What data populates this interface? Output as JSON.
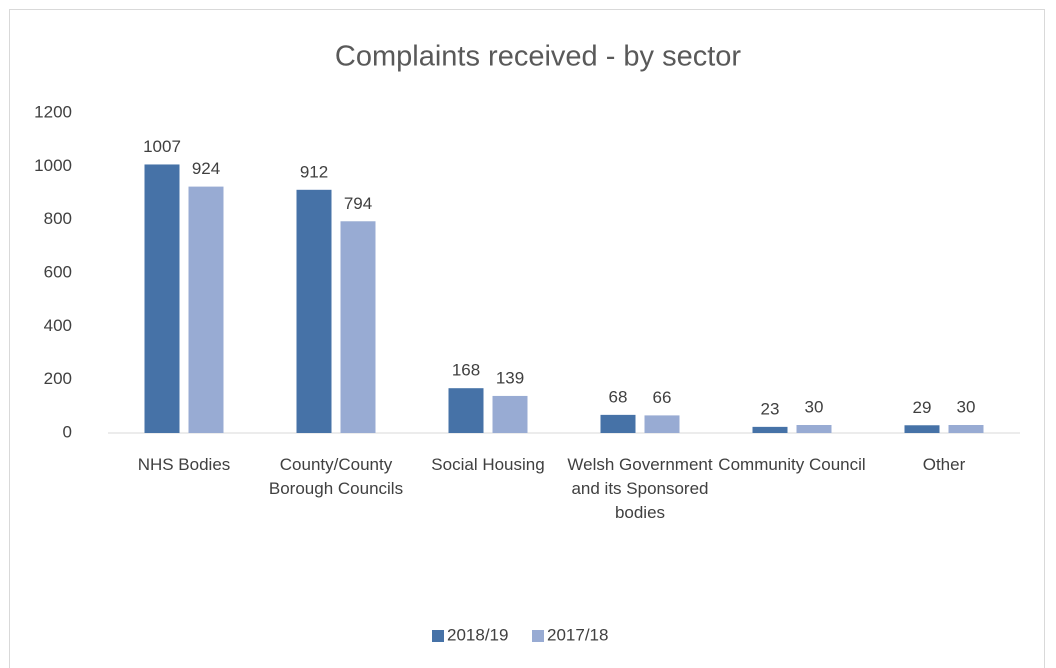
{
  "chart_data": {
    "type": "bar",
    "title": "Complaints received - by sector",
    "categories": [
      "NHS Bodies",
      "County/County Borough Councils",
      "Social  Housing",
      "Welsh Government and its Sponsored bodies",
      "Community Council",
      "Other"
    ],
    "series": [
      {
        "name": "2018/19",
        "color": "#4672a7",
        "values": [
          1007,
          912,
          168,
          68,
          23,
          29
        ]
      },
      {
        "name": "2017/18",
        "color": "#98abd3",
        "values": [
          924,
          794,
          139,
          66,
          30,
          30
        ]
      }
    ],
    "ylim": [
      0,
      1200
    ],
    "yticks": [
      0,
      200,
      400,
      600,
      800,
      1000,
      1200
    ],
    "grid": false,
    "legend": "bottom"
  }
}
